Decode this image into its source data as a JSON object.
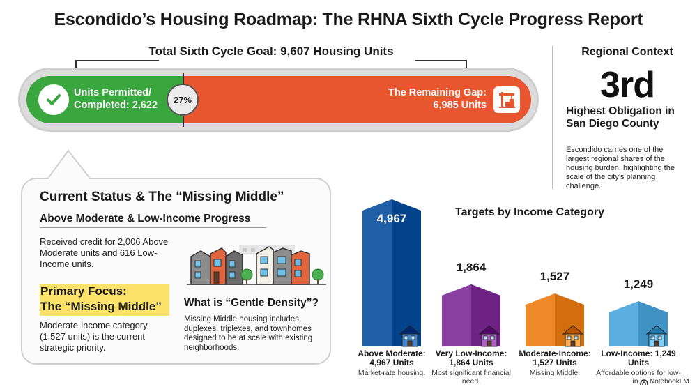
{
  "title": "Escondido’s Housing Roadmap: The RHNA Sixth Cycle Progress Report",
  "progress": {
    "goal_label": "Total Sixth Cycle Goal: 9,607 Housing Units",
    "permitted_label": "Units Permitted/ Completed: 2,622",
    "percent_label": "27%",
    "percent_value": 27,
    "remaining_label": "The Remaining Gap: 6,985 Units",
    "colors": {
      "permitted": "#3aa63e",
      "remaining": "#e8562f"
    }
  },
  "regional": {
    "heading": "Regional Context",
    "rank": "3rd",
    "subtitle": "Highest Obligation in San Diego County",
    "body": "Escondido carries one of the largest regional shares of the housing burden, highlighting the scale of the city’s planning challenge."
  },
  "status": {
    "title": "Current Status & The “Missing Middle”",
    "subtitle": "Above Moderate & Low-Income Progress",
    "body": "Received credit for 2,006 Above Moderate units and 616 Low-Income units.",
    "focus_line1": "Primary Focus:",
    "focus_line2": "The “Missing Middle”",
    "focus_body": "Moderate-income category (1,527 units) is the current strategic priority.",
    "gentle_title": "What is “Gentle Density”?",
    "gentle_body": "Missing Middle housing includes duplexes, triplexes, and townhomes designed to be at scale with existing neighborhoods.",
    "highlight_color": "#fde26a"
  },
  "chart_data": {
    "type": "bar",
    "title": "Targets by Income Category",
    "categories": [
      "Above Moderate",
      "Very Low-Income",
      "Moderate-Income",
      "Low-Income"
    ],
    "values": [
      4967,
      1864,
      1527,
      1249
    ],
    "value_labels": [
      "4,967",
      "1,864",
      "1,527",
      "1,249"
    ],
    "category_labels": [
      "Above Moderate: 4,967 Units",
      "Very Low-Income: 1,864 Units",
      "Moderate-Income: 1,527 Units",
      "Low-Income: 1,249 Units"
    ],
    "descriptions": [
      "Market-rate housing.",
      "Most significant financial need.",
      "Missing Middle.",
      "Affordable options for low-in..."
    ],
    "colors": [
      "#1f5fa8",
      "#8a3fa0",
      "#ef8a2a",
      "#5aaee0"
    ]
  },
  "brand": "NotebookLM"
}
